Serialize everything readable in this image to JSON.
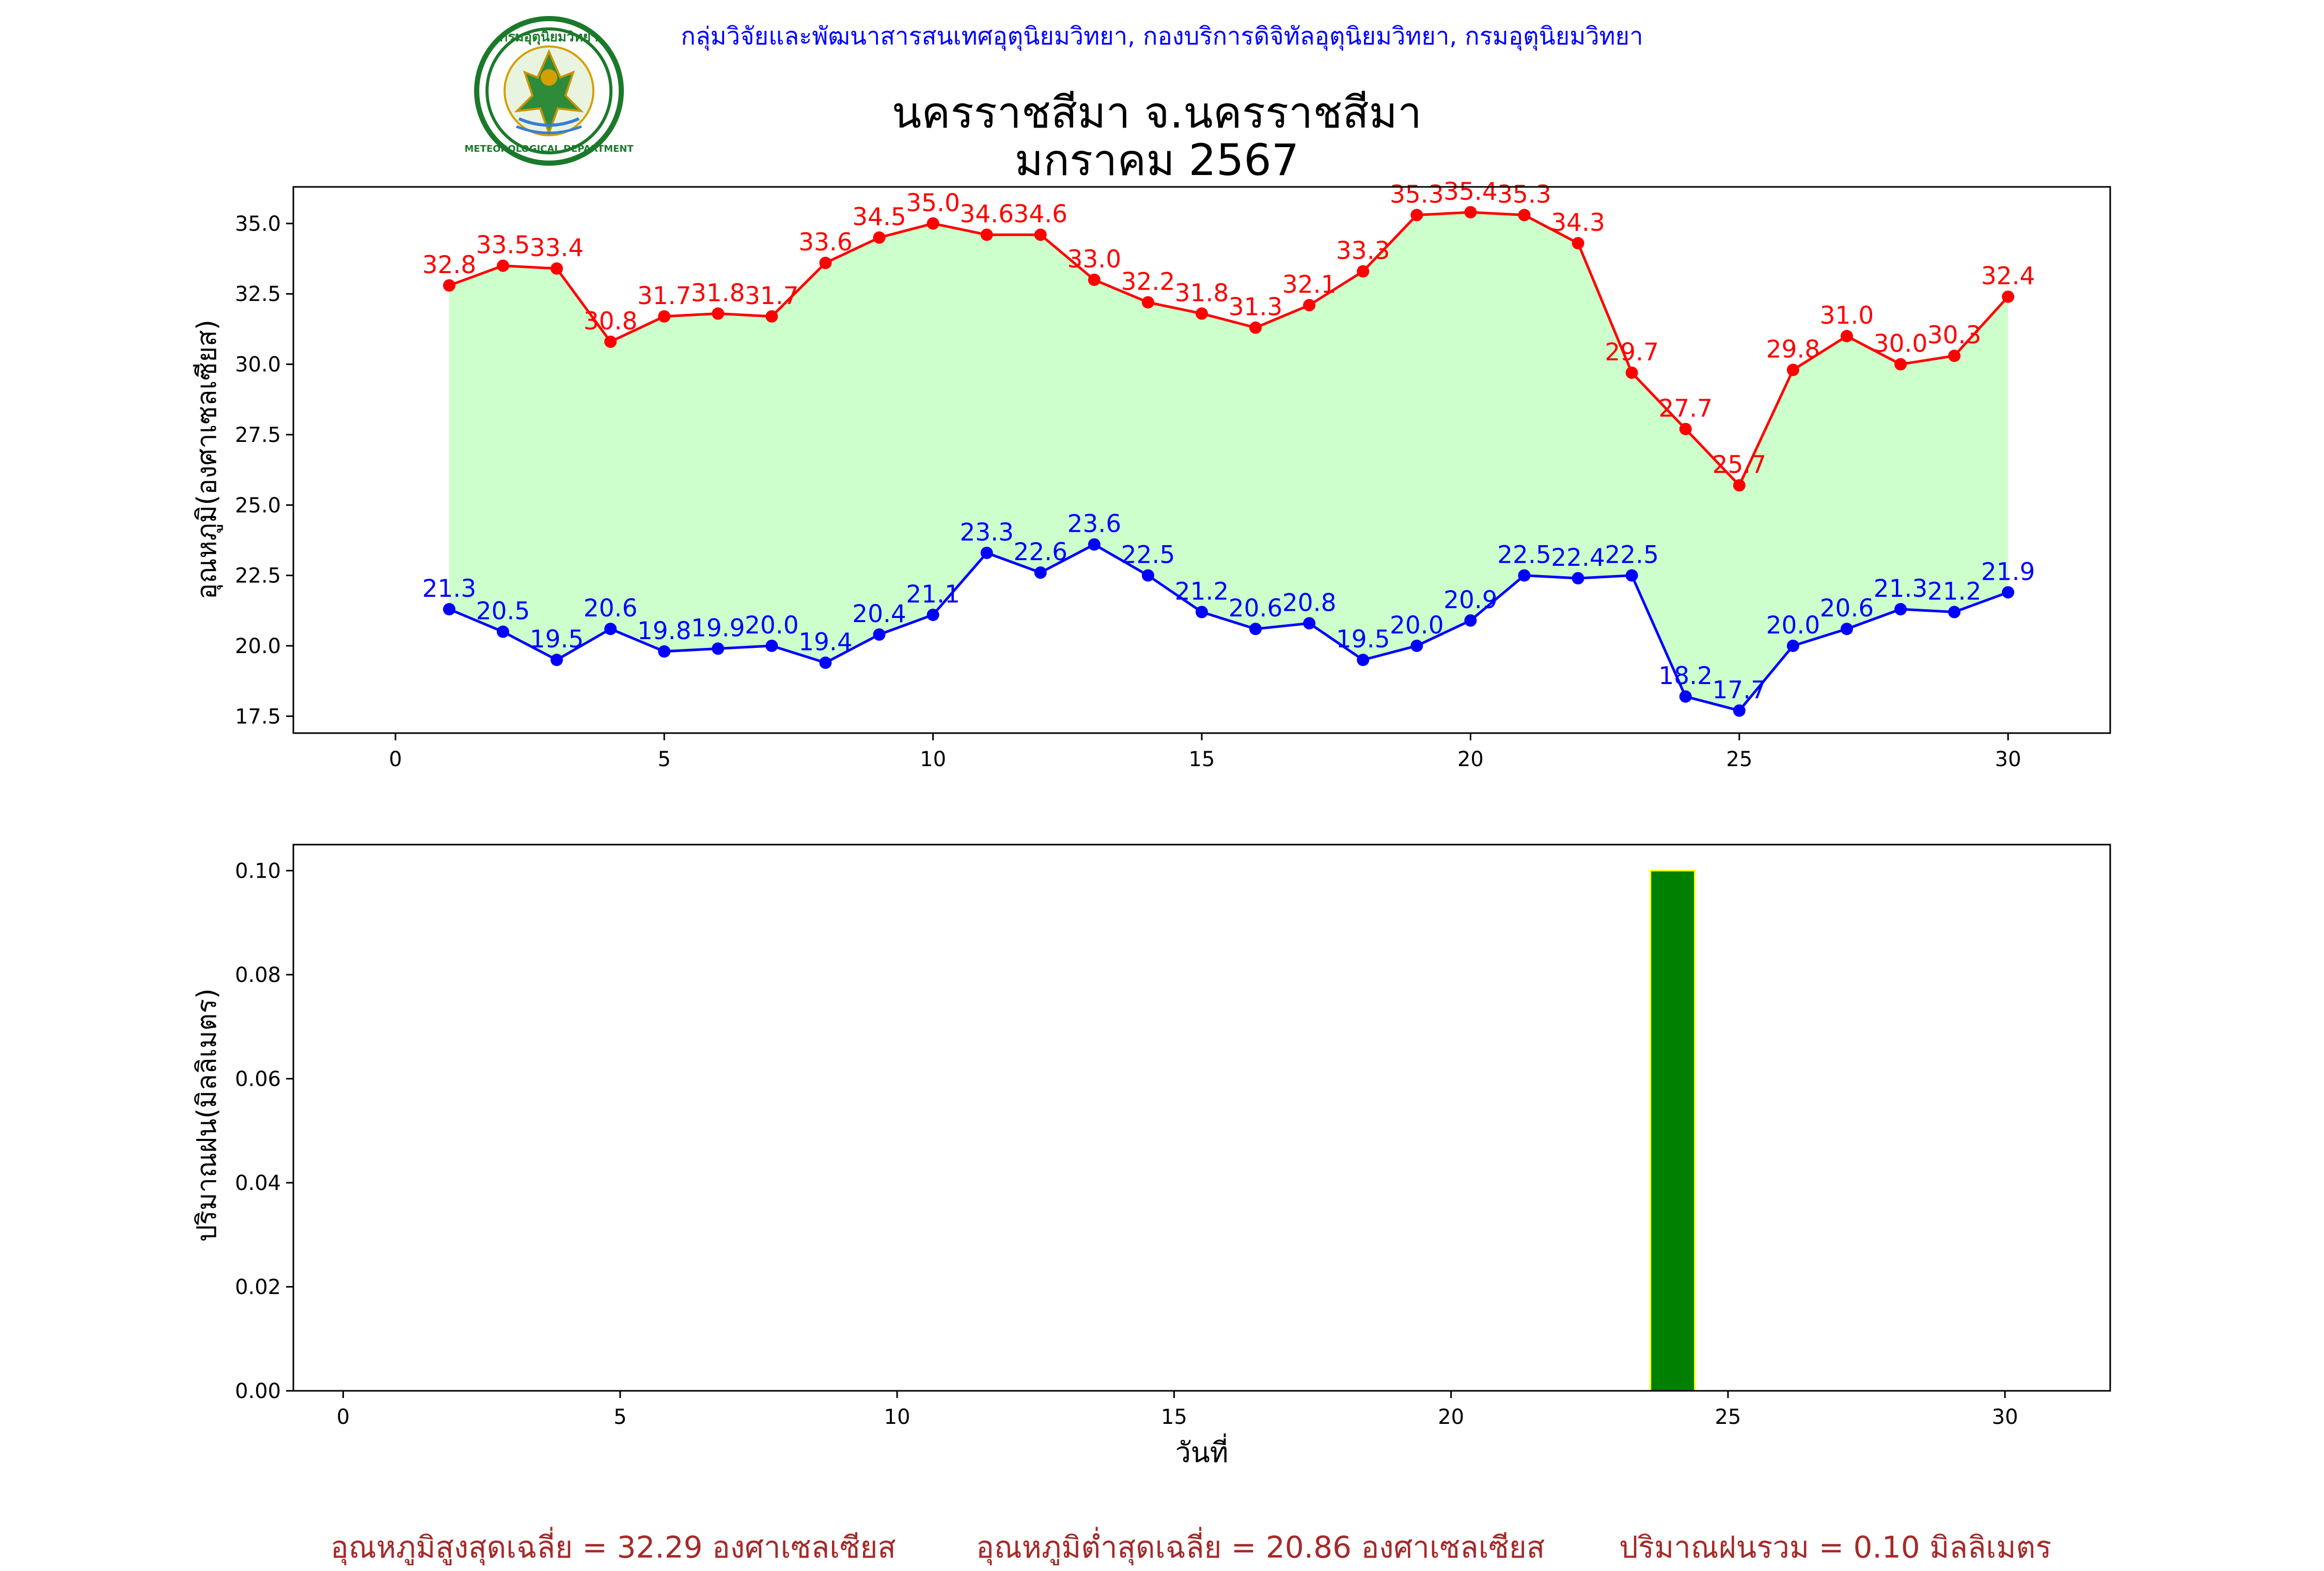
{
  "header": {
    "agency": "กลุ่มวิจัยและพัฒนาสารสนเทศอุตุนิยมวิทยา, กองบริการดิจิทัลอุตุนิยมวิทยา, กรมอุตุนิยมวิทยา",
    "title_line1": "นครราชสีมา จ.นครราชสีมา",
    "title_line2": "มกราคม 2567",
    "logo_text_top": "กรมอุตุนิยมวิทยา",
    "logo_text_bottom": "METEOROLOGICAL DEPARTMENT"
  },
  "colors": {
    "tmax": "#ff0000",
    "tmin": "#0000ff",
    "fill": "#ccffcc",
    "rain_bar": "#008000",
    "rain_edge": "#ffff00",
    "footer": "#a52a2a",
    "agency": "#0000ff"
  },
  "chart_data": [
    {
      "type": "line",
      "x": [
        1,
        2,
        3,
        4,
        5,
        6,
        7,
        8,
        9,
        10,
        11,
        12,
        13,
        14,
        15,
        16,
        17,
        18,
        19,
        20,
        21,
        22,
        23,
        24,
        25,
        26,
        27,
        28,
        29,
        30
      ],
      "series": [
        {
          "values": [
            32.8,
            33.5,
            33.4,
            30.8,
            31.7,
            31.8,
            31.7,
            33.6,
            34.5,
            35.0,
            34.6,
            34.6,
            33.0,
            32.2,
            31.8,
            31.3,
            32.1,
            33.3,
            35.3,
            35.4,
            35.3,
            34.3,
            29.7,
            27.7,
            25.7,
            29.8,
            31.0,
            30.0,
            30.3,
            32.4
          ],
          "color": "#ff0000"
        },
        {
          "values": [
            21.3,
            20.5,
            19.5,
            20.6,
            19.8,
            19.9,
            20.0,
            19.4,
            20.4,
            21.1,
            23.3,
            22.6,
            23.6,
            22.5,
            21.2,
            20.6,
            20.8,
            19.5,
            20.0,
            20.9,
            22.5,
            22.4,
            22.5,
            18.2,
            17.7,
            20.0,
            20.6,
            21.3,
            21.2,
            21.9
          ],
          "color": "#0000ff"
        }
      ],
      "ylabel": "อุณหภูมิ(องศาเซลเซียส)",
      "xlim": [
        -1.9,
        31.9
      ],
      "ylim": [
        16.9,
        36.3
      ],
      "xticks": [
        0,
        5,
        10,
        15,
        20,
        25,
        30
      ],
      "xtick_labels": [
        "0",
        "5",
        "10",
        "15",
        "20",
        "25",
        "30"
      ],
      "yticks": [
        17.5,
        20.0,
        22.5,
        25.0,
        27.5,
        30.0,
        32.5,
        35.0
      ],
      "ytick_labels": [
        "17.5",
        "20.0",
        "22.5",
        "25.0",
        "27.5",
        "30.0",
        "32.5",
        "35.0"
      ],
      "grid": false
    },
    {
      "type": "bar",
      "x": [
        1,
        2,
        3,
        4,
        5,
        6,
        7,
        8,
        9,
        10,
        11,
        12,
        13,
        14,
        15,
        16,
        17,
        18,
        19,
        20,
        21,
        22,
        23,
        24,
        25,
        26,
        27,
        28,
        29,
        30
      ],
      "values": [
        0,
        0,
        0,
        0,
        0,
        0,
        0,
        0,
        0,
        0,
        0,
        0,
        0,
        0,
        0,
        0,
        0,
        0,
        0,
        0,
        0,
        0,
        0,
        0.1,
        0,
        0,
        0,
        0,
        0,
        0
      ],
      "xlabel": "วันที่",
      "ylabel": "ปริมาณฝน(มิลลิเมตร)",
      "xlim": [
        -0.9,
        31.9
      ],
      "ylim": [
        0,
        0.105
      ],
      "xticks": [
        0,
        5,
        10,
        15,
        20,
        25,
        30
      ],
      "xtick_labels": [
        "0",
        "5",
        "10",
        "15",
        "20",
        "25",
        "30"
      ],
      "yticks": [
        0,
        0.02,
        0.04,
        0.06,
        0.08,
        0.1
      ],
      "ytick_labels": [
        "0.00",
        "0.02",
        "0.04",
        "0.06",
        "0.08",
        "0.10"
      ],
      "grid": false
    }
  ],
  "footer": {
    "avg_max": "อุณหภูมิสูงสุดเฉลี่ย = 32.29 องศาเซลเซียส",
    "avg_min": "อุณหภูมิต่ำสุดเฉลี่ย = 20.86 องศาเซลเซียส",
    "rain_total": "ปริมาณฝนรวม = 0.10 มิลลิเมตร"
  }
}
